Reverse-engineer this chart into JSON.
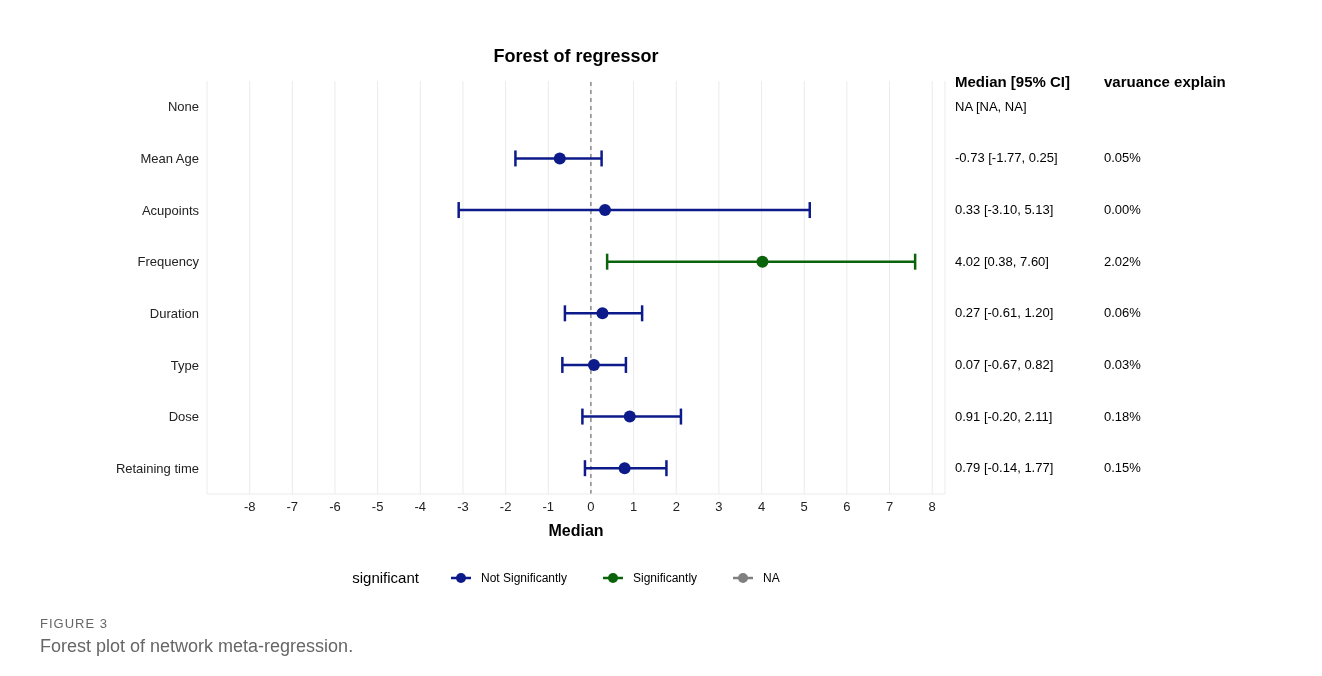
{
  "chart_data": {
    "type": "scatter",
    "orientation": "horizontal",
    "title": "Forest of regressor",
    "xlabel": "Median",
    "legend_title": "significant",
    "categories": [
      "None",
      "Mean Age",
      "Acupoints",
      "Frequency",
      "Duration",
      "Type",
      "Dose",
      "Retaining time"
    ],
    "series": [
      {
        "name": "Not Significantly",
        "color": "#0c1a8a",
        "values": [
          null,
          -0.73,
          0.33,
          null,
          0.27,
          0.07,
          0.91,
          0.79
        ],
        "errors": [
          null,
          [
            -1.77,
            0.25
          ],
          [
            -3.1,
            5.13
          ],
          null,
          [
            -0.61,
            1.2
          ],
          [
            -0.67,
            0.82
          ],
          [
            -0.2,
            2.11
          ],
          [
            -0.14,
            1.77
          ]
        ]
      },
      {
        "name": "Significantly",
        "color": "#0b640b",
        "values": [
          null,
          null,
          null,
          4.02,
          null,
          null,
          null,
          null
        ],
        "errors": [
          null,
          null,
          null,
          [
            0.38,
            7.6
          ],
          null,
          null,
          null,
          null
        ]
      },
      {
        "name": "NA",
        "color": "#808080",
        "values": [
          null,
          null,
          null,
          null,
          null,
          null,
          null,
          null
        ]
      }
    ],
    "xlim": [
      -9,
      8.3
    ],
    "xticks": [
      -8,
      -7,
      -6,
      -5,
      -4,
      -3,
      -2,
      -1,
      0,
      1,
      2,
      3,
      4,
      5,
      6,
      7,
      8
    ],
    "ref_lines": [
      {
        "axis": "x",
        "value": 0,
        "color": "#555555",
        "line_style": "dashed"
      }
    ],
    "grid": "x",
    "legend": "bottom",
    "marker": "circle",
    "annotations": [
      "Median [95% CI]",
      "varuance explain",
      "FIGURE 3",
      "Forest plot of network meta-regression.",
      "NA [NA, NA]",
      "-0.73 [-1.77, 0.25]",
      "0.33 [-3.10, 5.13]",
      "4.02 [0.38, 7.60]",
      "0.27 [-0.61, 1.20]",
      "0.07 [-0.67, 0.82]",
      "0.91 [-0.20, 2.11]",
      "0.79 [-0.14, 1.77]",
      "0.05%",
      "0.00%",
      "2.02%",
      "0.06%",
      "0.03%",
      "0.18%",
      "0.15%"
    ]
  }
}
